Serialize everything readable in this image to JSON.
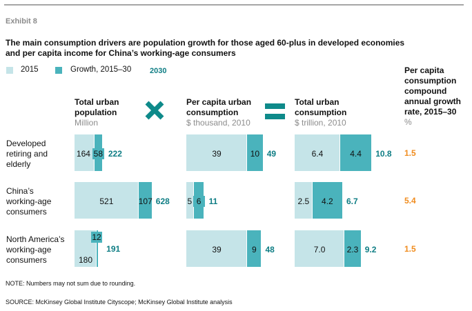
{
  "exhibit": "Exhibit 8",
  "title_line1": "The main consumption drivers are population growth for those aged 60-plus in developed economies",
  "title_line2": "and per capita income for China’s working-age consumers",
  "legend": {
    "base": "2015",
    "growth": "Growth, 2015–30",
    "total": "2030"
  },
  "colors": {
    "base": "#c5e4e8",
    "growth": "#4ab3bc",
    "total": "#0e7d84",
    "rate": "#f08c1e",
    "operator": "#0e8a8a"
  },
  "operators": {
    "multiply": "multiply-icon",
    "equals": "equals-icon"
  },
  "headers": {
    "pop": {
      "title1": "Total urban",
      "title2": "population",
      "unit": "Million"
    },
    "pc": {
      "title1": "Per capita urban",
      "title2": "consumption",
      "unit": "$ thousand, 2010"
    },
    "tot": {
      "title1": "Total urban",
      "title2": "consumption",
      "unit": "$ trillion, 2010"
    },
    "rate": {
      "l1": "Per capita",
      "l2": "consumption",
      "l3": "compound",
      "l4": "annual growth",
      "l5": "rate, 2015–30",
      "unit": "%"
    }
  },
  "chart_data": {
    "type": "bar",
    "stacked": true,
    "orientation": "horizontal",
    "categories": [
      "Developed retiring and elderly",
      "China’s working-age consumers",
      "North America’s working-age consumers"
    ],
    "category_lines": [
      [
        "Developed",
        "retiring and",
        "elderly"
      ],
      [
        "China’s",
        "working-age",
        "consumers"
      ],
      [
        "North America’s",
        "working-age",
        "consumers"
      ]
    ],
    "panels": [
      {
        "key": "pop",
        "base_2015": [
          "164",
          "521",
          "180"
        ],
        "growth": [
          "58",
          "107",
          "12"
        ],
        "total_2030": [
          "222",
          "628",
          "191"
        ]
      },
      {
        "key": "pc",
        "base_2015": [
          "39",
          "5",
          "39"
        ],
        "growth": [
          "10",
          "6",
          "9"
        ],
        "total_2030": [
          "49",
          "11",
          "48"
        ]
      },
      {
        "key": "tot",
        "base_2015": [
          "6.4",
          "2.5",
          "7.0"
        ],
        "growth": [
          "4.4",
          "4.2",
          "2.3"
        ],
        "total_2030": [
          "10.8",
          "6.7",
          "9.2"
        ]
      }
    ],
    "growth_rate": [
      "1.5",
      "5.4",
      "1.5"
    ]
  },
  "note": "NOTE: Numbers may not sum due to rounding.",
  "source": "SOURCE:  McKinsey Global Institute Cityscope; McKinsey Global Institute analysis"
}
